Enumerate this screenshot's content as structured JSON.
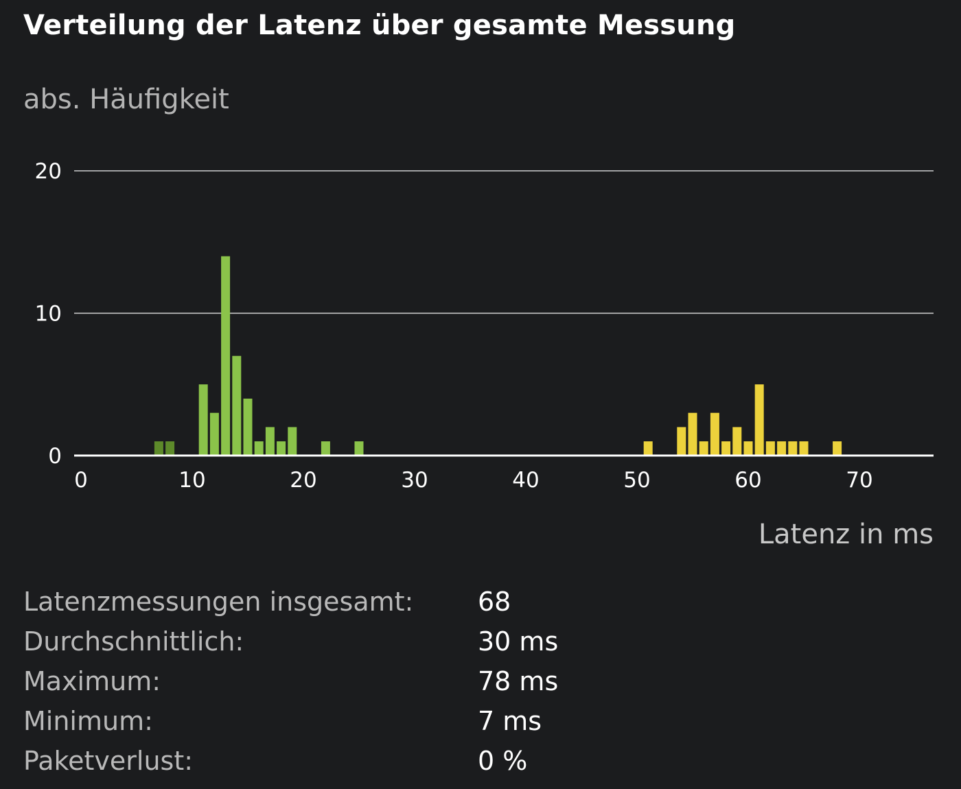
{
  "chart_data": {
    "type": "bar",
    "title": "Verteilung der Latenz über gesamte Messung",
    "ylabel": "abs. Häufigkeit",
    "xlabel": "Latenz in ms",
    "xlim": [
      0,
      77
    ],
    "ylim": [
      0,
      20
    ],
    "x_ticks": [
      0,
      10,
      20,
      30,
      40,
      50,
      60,
      70
    ],
    "y_ticks": [
      0,
      10,
      20
    ],
    "grid": true,
    "bars": [
      {
        "x": 7,
        "value": 1,
        "color": "#5d8a2a"
      },
      {
        "x": 8,
        "value": 1,
        "color": "#5d8a2a"
      },
      {
        "x": 11,
        "value": 5,
        "color": "#8bc34a"
      },
      {
        "x": 12,
        "value": 3,
        "color": "#8bc34a"
      },
      {
        "x": 13,
        "value": 14,
        "color": "#8bc34a"
      },
      {
        "x": 14,
        "value": 7,
        "color": "#8bc34a"
      },
      {
        "x": 15,
        "value": 4,
        "color": "#8bc34a"
      },
      {
        "x": 16,
        "value": 1,
        "color": "#8bc34a"
      },
      {
        "x": 17,
        "value": 2,
        "color": "#8bc34a"
      },
      {
        "x": 18,
        "value": 1,
        "color": "#8bc34a"
      },
      {
        "x": 19,
        "value": 2,
        "color": "#8bc34a"
      },
      {
        "x": 22,
        "value": 1,
        "color": "#8bc34a"
      },
      {
        "x": 25,
        "value": 1,
        "color": "#8bc34a"
      },
      {
        "x": 51,
        "value": 1,
        "color": "#ecd23c"
      },
      {
        "x": 54,
        "value": 2,
        "color": "#ecd23c"
      },
      {
        "x": 55,
        "value": 3,
        "color": "#ecd23c"
      },
      {
        "x": 56,
        "value": 1,
        "color": "#ecd23c"
      },
      {
        "x": 57,
        "value": 3,
        "color": "#ecd23c"
      },
      {
        "x": 58,
        "value": 1,
        "color": "#ecd23c"
      },
      {
        "x": 59,
        "value": 2,
        "color": "#ecd23c"
      },
      {
        "x": 60,
        "value": 1,
        "color": "#ecd23c"
      },
      {
        "x": 61,
        "value": 5,
        "color": "#ecd23c"
      },
      {
        "x": 62,
        "value": 1,
        "color": "#ecd23c"
      },
      {
        "x": 63,
        "value": 1,
        "color": "#ecd23c"
      },
      {
        "x": 64,
        "value": 1,
        "color": "#ecd23c"
      },
      {
        "x": 65,
        "value": 1,
        "color": "#ecd23c"
      },
      {
        "x": 68,
        "value": 1,
        "color": "#ecd23c"
      }
    ]
  },
  "stats": [
    {
      "label": "Latenzmessungen insgesamt:",
      "value": "68"
    },
    {
      "label": "Durchschnittlich:",
      "value": "30 ms"
    },
    {
      "label": "Maximum:",
      "value": "78 ms"
    },
    {
      "label": "Minimum:",
      "value": "7 ms"
    },
    {
      "label": "Paketverlust:",
      "value": "0 %"
    }
  ]
}
